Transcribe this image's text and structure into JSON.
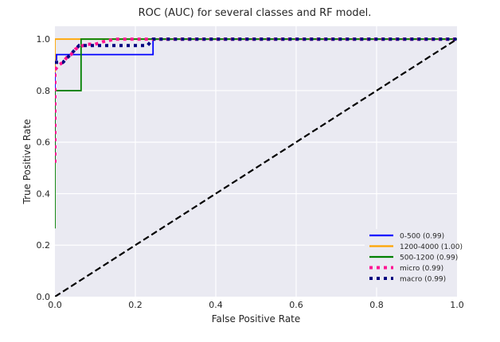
{
  "chart_data": {
    "type": "line",
    "title": "ROC (AUC) for several classes and RF model.",
    "xlabel": "False Positive Rate",
    "ylabel": "True Positive Rate",
    "xlim": [
      0,
      1
    ],
    "ylim": [
      0,
      1.05
    ],
    "xticks": [
      0.0,
      0.2,
      0.4,
      0.6,
      0.8,
      1.0
    ],
    "yticks": [
      0.0,
      0.2,
      0.4,
      0.6,
      0.8,
      1.0
    ],
    "xtick_labels": [
      "0.0",
      "0.2",
      "0.4",
      "0.6",
      "0.8",
      "1.0"
    ],
    "ytick_labels": [
      "0.0",
      "0.2",
      "0.4",
      "0.6",
      "0.8",
      "1.0"
    ],
    "grid": true,
    "legend_position": "lower-right",
    "series": [
      {
        "name": "0-500 (0.99)",
        "color": "#0000ff",
        "style": "solid",
        "x": [
          0,
          0,
          0.004,
          0.004,
          0.244,
          0.244,
          1
        ],
        "y": [
          0.53,
          0.92,
          0.92,
          0.94,
          0.94,
          1.0,
          1.0
        ]
      },
      {
        "name": "1200-4000 (1.00)",
        "color": "#ffa500",
        "style": "solid",
        "x": [
          0,
          0,
          1
        ],
        "y": [
          0.87,
          1.0,
          1.0
        ]
      },
      {
        "name": "500-1200 (0.99)",
        "color": "#008000",
        "style": "solid",
        "x": [
          0,
          0,
          0.065,
          0.065,
          1
        ],
        "y": [
          0.265,
          0.8,
          0.8,
          1.0,
          1.0
        ]
      },
      {
        "name": "micro (0.99)",
        "color": "#ff1493",
        "style": "dotted",
        "x": [
          0,
          0,
          0.005,
          0.01,
          0.02,
          0.03,
          0.04,
          0.05,
          0.06,
          0.08,
          0.1,
          0.12,
          0.15,
          0.2,
          0.3,
          0.5,
          1
        ],
        "y": [
          0.52,
          0.88,
          0.89,
          0.9,
          0.91,
          0.93,
          0.94,
          0.96,
          0.97,
          0.98,
          0.98,
          0.99,
          1.0,
          1.0,
          1.0,
          1.0,
          1.0
        ]
      },
      {
        "name": "macro (0.99)",
        "color": "#000080",
        "style": "dotted",
        "x": [
          0,
          0.02,
          0.06,
          0.1,
          0.15,
          0.23,
          0.244,
          0.3,
          0.5,
          1
        ],
        "y": [
          0.91,
          0.91,
          0.975,
          0.975,
          0.975,
          0.975,
          1.0,
          1.0,
          1.0,
          1.0
        ]
      },
      {
        "name": "",
        "color": "#000000",
        "style": "dashed",
        "x": [
          0,
          1
        ],
        "y": [
          0,
          1
        ]
      }
    ]
  }
}
